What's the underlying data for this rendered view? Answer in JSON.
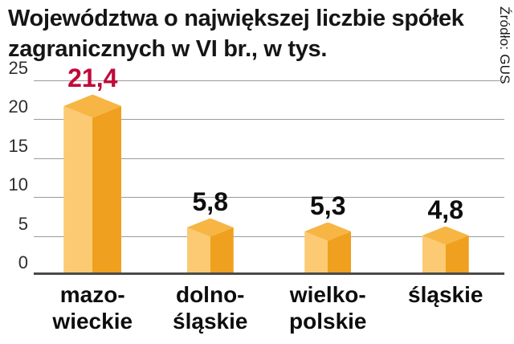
{
  "header": {
    "title": "Województwa o największej liczbie spółek zagranicznych w VI br., w tys.",
    "source": "Źródło: GUS"
  },
  "chart_data": {
    "type": "bar",
    "title": "Województwa o największej liczbie spółek zagranicznych w VI br., w tys.",
    "source": "Źródło: GUS",
    "categories": [
      [
        "mazo-",
        "wieckie"
      ],
      [
        "dolno-",
        "śląskie"
      ],
      [
        "wielko-",
        "polskie"
      ],
      [
        "śląskie"
      ]
    ],
    "values": [
      21.4,
      5.8,
      5.3,
      4.8
    ],
    "value_labels": [
      "21,4",
      "5,8",
      "5,3",
      "4,8"
    ],
    "value_colors": [
      "#c00a3a",
      "#0d0d0d",
      "#0d0d0d",
      "#0d0d0d"
    ],
    "ylim": [
      0,
      25
    ],
    "yticks": [
      0,
      5,
      10,
      15,
      20,
      25
    ],
    "grid": true,
    "legend": "none",
    "bar_colors": {
      "top": "#f7b544",
      "left": "#fbca72",
      "right": "#efa01e"
    }
  }
}
